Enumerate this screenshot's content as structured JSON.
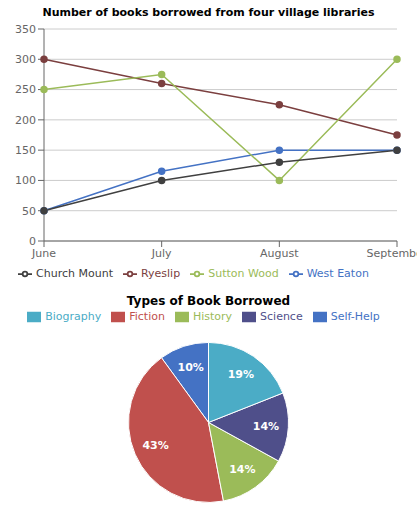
{
  "chart_data": [
    {
      "type": "line",
      "title": "Number of books borrowed from four village libraries",
      "categories": [
        "June",
        "July",
        "August",
        "September"
      ],
      "series": [
        {
          "name": "West Eaton",
          "color": "#4472C4",
          "values": [
            50,
            115,
            150,
            150
          ],
          "marker": "circle"
        },
        {
          "name": "Ryeslip",
          "color": "#7B3F3F",
          "values": [
            300,
            260,
            225,
            175
          ],
          "marker": "circle"
        },
        {
          "name": "Sutton Wood",
          "color": "#9BBB59",
          "values": [
            250,
            275,
            100,
            300
          ],
          "marker": "circle"
        },
        {
          "name": "Church Mount",
          "color": "#404040",
          "values": [
            50,
            100,
            130,
            150
          ],
          "marker": "circle"
        }
      ],
      "ylim": [
        0,
        350
      ],
      "yticks": [
        0,
        50,
        100,
        150,
        200,
        250,
        300,
        350
      ],
      "grid": true,
      "legend": "bottom"
    },
    {
      "type": "pie",
      "title": "Types of Book Borrowed",
      "categories": [
        "Self-Help",
        "Fiction",
        "History",
        "Science",
        "Biography"
      ],
      "values": [
        10,
        43,
        14,
        14,
        19
      ],
      "value_labels": [
        "10%",
        "43%",
        "14%",
        "14%",
        "19%"
      ],
      "colors": [
        "#4472C4",
        "#C0504D",
        "#9BBB59",
        "#4F4F8A",
        "#4BACC6"
      ],
      "data_labels": true,
      "legend": "top"
    }
  ]
}
